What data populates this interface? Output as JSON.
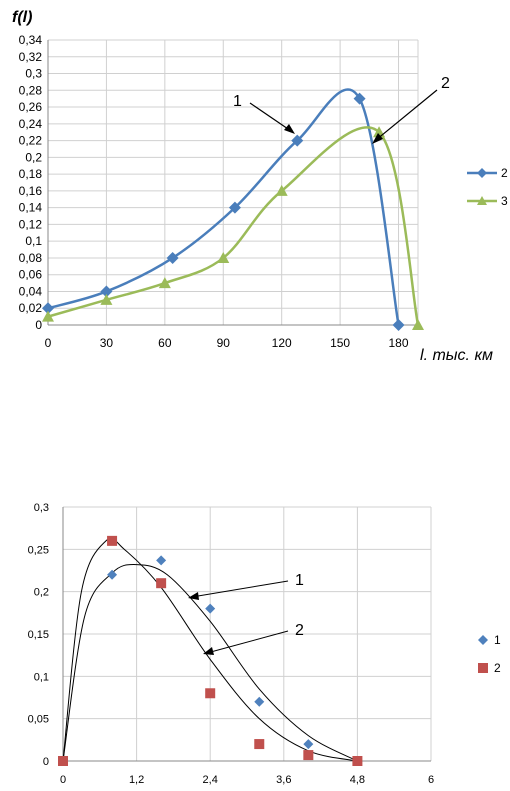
{
  "chart_data": [
    {
      "type": "line",
      "ylabel": "f(l)",
      "xlabel": "l, тыс. км",
      "xlim": [
        0,
        190
      ],
      "ylim": [
        0,
        0.34
      ],
      "x_ticks": [
        "0",
        "30",
        "60",
        "90",
        "120",
        "150",
        "180"
      ],
      "y_ticks": [
        "0",
        "0,02",
        "0,04",
        "0,06",
        "0,08",
        "0,1",
        "0,12",
        "0,14",
        "0,16",
        "0,18",
        "0,2",
        "0,22",
        "0,24",
        "0,26",
        "0,28",
        "0,3",
        "0,32",
        "0,34"
      ],
      "grid": true,
      "legend_position": "right",
      "series": [
        {
          "name": "2",
          "color": "#4a7ebb",
          "marker": "diamond",
          "x": [
            0,
            30,
            64,
            96,
            128,
            160,
            180
          ],
          "y": [
            0.02,
            0.04,
            0.08,
            0.14,
            0.22,
            0.27,
            0
          ]
        },
        {
          "name": "3",
          "color": "#9bbb59",
          "marker": "triangle",
          "x": [
            0,
            30,
            60,
            90,
            120,
            170,
            190
          ],
          "y": [
            0.01,
            0.03,
            0.05,
            0.08,
            0.16,
            0.23,
            0
          ]
        }
      ],
      "annotations": [
        {
          "label": "1"
        },
        {
          "label": "2"
        }
      ]
    },
    {
      "type": "scatter",
      "xlim": [
        0,
        6
      ],
      "ylim": [
        0,
        0.3
      ],
      "x_ticks": [
        "0",
        "1,2",
        "2,4",
        "3,6",
        "4,8",
        "6"
      ],
      "y_ticks": [
        "0",
        "0,05",
        "0,1",
        "0,15",
        "0,2",
        "0,25",
        "0,3"
      ],
      "grid": true,
      "legend_position": "right",
      "series": [
        {
          "name": "1",
          "color": "#4f81bd",
          "marker": "diamond",
          "x": [
            0,
            0.8,
            1.6,
            2.4,
            3.2,
            4.0,
            4.8
          ],
          "y": [
            0,
            0.22,
            0.237,
            0.18,
            0.07,
            0.02,
            0
          ]
        },
        {
          "name": "2",
          "color": "#c0504d",
          "marker": "square",
          "x": [
            0,
            0.8,
            1.6,
            2.4,
            3.2,
            4.0,
            4.8
          ],
          "y": [
            0,
            0.26,
            0.21,
            0.08,
            0.02,
            0.007,
            0
          ]
        }
      ],
      "annotations": [
        {
          "label": "1"
        },
        {
          "label": "2"
        }
      ]
    }
  ]
}
